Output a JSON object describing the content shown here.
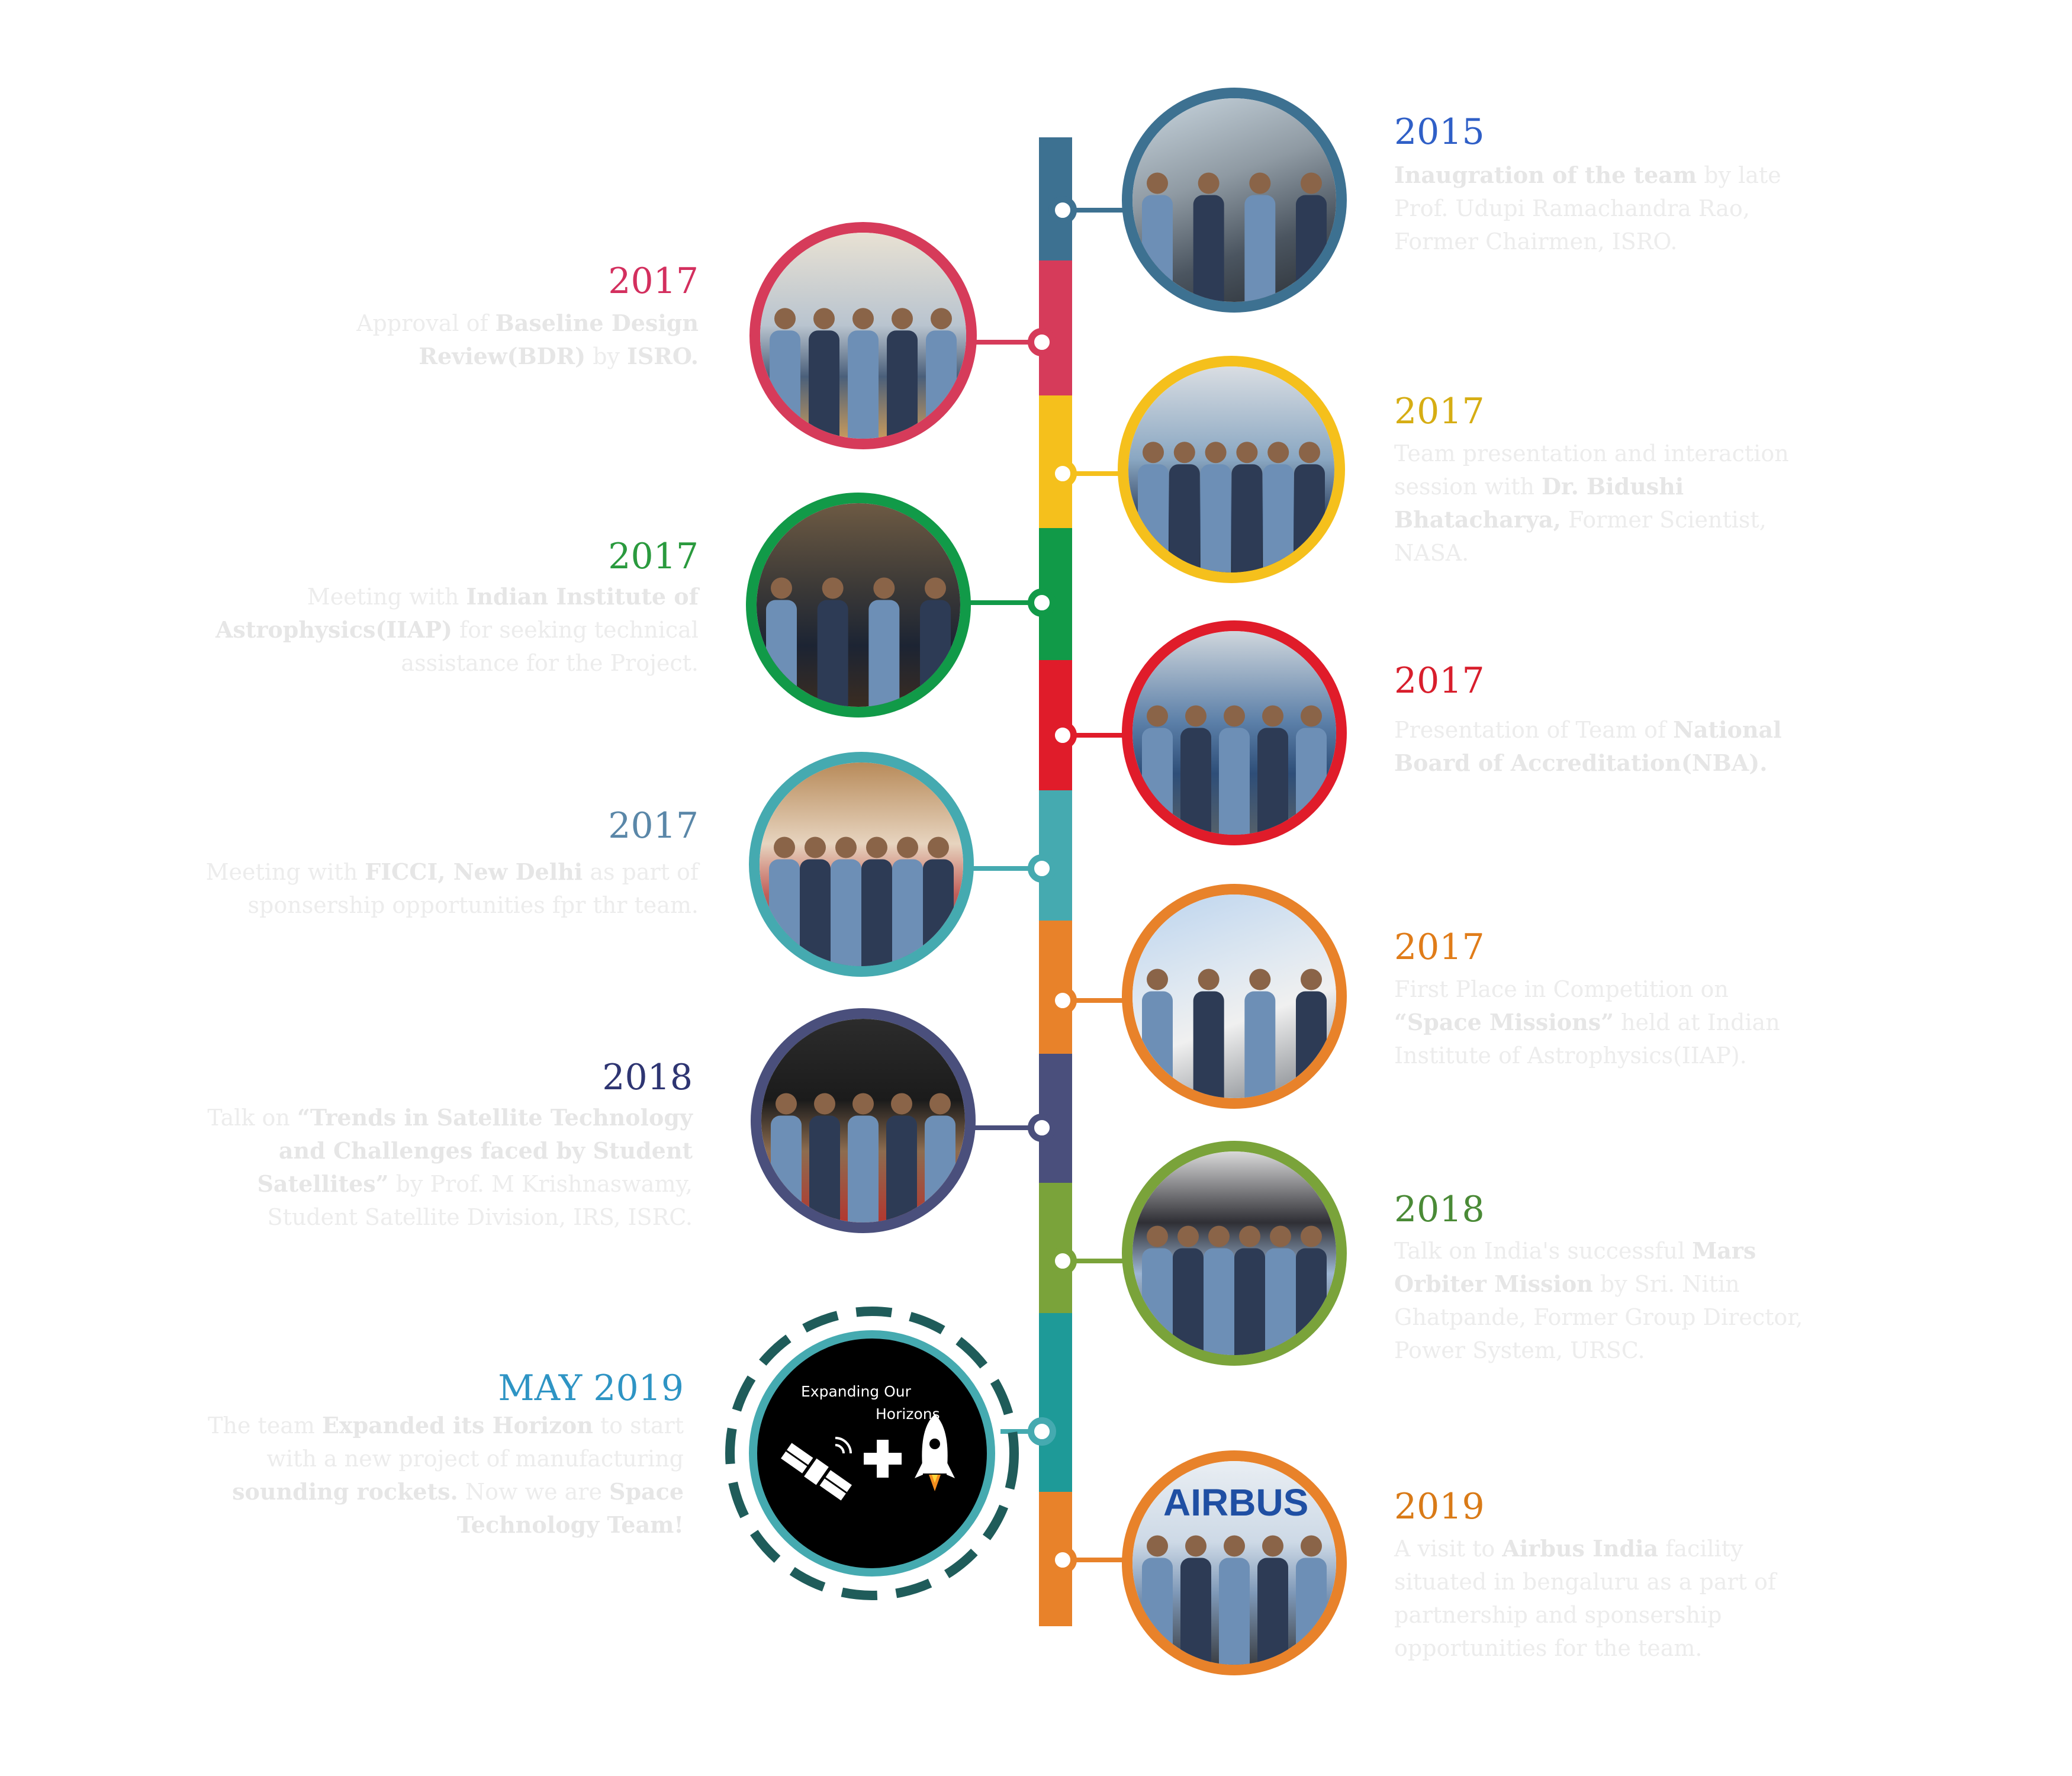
{
  "colors": {
    "blue": "#3d7191",
    "crimson": "#d63b5a",
    "yellow": "#f5c01c",
    "green": "#119a48",
    "red": "#e01c2a",
    "teal": "#45aab0",
    "orange": "#e8822a",
    "navy": "#4a4f7c",
    "olive": "#7aa33a",
    "sea": "#1e9a98",
    "dark_teal": "#1f5c5a"
  },
  "events": [
    {
      "year": "2015",
      "year_color": "#2f5fc7",
      "side": "right",
      "ring_color": "#3d7191",
      "parts": [
        {
          "t": "Inaugration of the team",
          "b": true
        },
        {
          "t": " by late Prof. Udupi Ramachandra Rao, Former Chairmen, ISRO.",
          "b": false
        }
      ]
    },
    {
      "year": "2017",
      "year_color": "#d32f5e",
      "side": "left",
      "ring_color": "#d63b5a",
      "parts": [
        {
          "t": "Approval of ",
          "b": false
        },
        {
          "t": "Baseline Design Review(BDR)",
          "b": true
        },
        {
          "t": " by ",
          "b": false
        },
        {
          "t": "ISRO.",
          "b": true
        }
      ]
    },
    {
      "year": "2017",
      "year_color": "#d6ad13",
      "side": "right",
      "ring_color": "#f5c01c",
      "parts": [
        {
          "t": "Team presentation and interaction session with ",
          "b": false
        },
        {
          "t": "Dr. Bidushi Bhatacharya,",
          "b": true
        },
        {
          "t": " Former Scientist, NASA.",
          "b": false
        }
      ]
    },
    {
      "year": "2017",
      "year_color": "#2a9a3e",
      "side": "left",
      "ring_color": "#119a48",
      "parts": [
        {
          "t": "Meeting with ",
          "b": false
        },
        {
          "t": "Indian Institute of Astrophysics(IIAP)",
          "b": true
        },
        {
          "t": " for seeking technical assistance for the Project.",
          "b": false
        }
      ]
    },
    {
      "year": "2017",
      "year_color": "#d81e2c",
      "side": "right",
      "ring_color": "#e01c2a",
      "parts": [
        {
          "t": "Presentation of Team of ",
          "b": false
        },
        {
          "t": "National Board of Accreditation(NBA).",
          "b": true
        }
      ]
    },
    {
      "year": "2017",
      "year_color": "#5a87a8",
      "side": "left",
      "ring_color": "#45aab0",
      "parts": [
        {
          "t": "Meeting with ",
          "b": false
        },
        {
          "t": "FICCI, New Delhi",
          "b": true
        },
        {
          "t": " as part of sponsership opportunities fpr thr team.",
          "b": false
        }
      ]
    },
    {
      "year": "2017",
      "year_color": "#e07c19",
      "side": "right",
      "ring_color": "#e8822a",
      "parts": [
        {
          "t": "First Place in Competition on ",
          "b": false
        },
        {
          "t": "“Space Missions”",
          "b": true
        },
        {
          "t": " held at Indian Institute of Astrophysics(IIAP).",
          "b": false
        }
      ]
    },
    {
      "year": "2018",
      "year_color": "#2e3572",
      "side": "left",
      "ring_color": "#4a4f7c",
      "parts": [
        {
          "t": "Talk on ",
          "b": false
        },
        {
          "t": "“Trends in Satellite Technology and Challenges faced by Student Satellites”",
          "b": true
        },
        {
          "t": " by Prof. M Krishnaswamy, Student Satellite Division, IRS, ISRC.",
          "b": false
        }
      ]
    },
    {
      "year": "2018",
      "year_color": "#4a8a36",
      "side": "right",
      "ring_color": "#7aa33a",
      "parts": [
        {
          "t": "Talk on India's successful ",
          "b": false
        },
        {
          "t": "Mars Orbiter Mission",
          "b": true
        },
        {
          "t": " by Sri. Nitin Ghatpande, Former Group Director, Power System, URSC.",
          "b": false
        }
      ]
    },
    {
      "year": "MAY 2019",
      "year_color": "#2e94c4",
      "side": "left",
      "ring_color": "#45aab0",
      "parts": [
        {
          "t": "The team ",
          "b": false
        },
        {
          "t": "Expanded its Horizon",
          "b": true
        },
        {
          "t": " to start with a new project of manufacturing ",
          "b": false
        },
        {
          "t": "sounding rockets.",
          "b": true
        },
        {
          "t": " Now we are ",
          "b": false
        },
        {
          "t": "Space Technology Team!",
          "b": true
        }
      ]
    },
    {
      "year": "2019",
      "year_color": "#d97a17",
      "side": "right",
      "ring_color": "#e8822a",
      "parts": [
        {
          "t": "A visit to ",
          "b": false
        },
        {
          "t": "Airbus India",
          "b": true
        },
        {
          "t": " facility situated in bengaluru as a part of partnership and sponsership opportunities for the team.",
          "b": false
        }
      ]
    }
  ],
  "expand": {
    "title_line1": "Expanding Our",
    "title_line2": "Horizons",
    "icons": [
      "satellite-icon",
      "plus-icon",
      "rocket-icon"
    ]
  },
  "airbus_sign": "AIRBUS"
}
